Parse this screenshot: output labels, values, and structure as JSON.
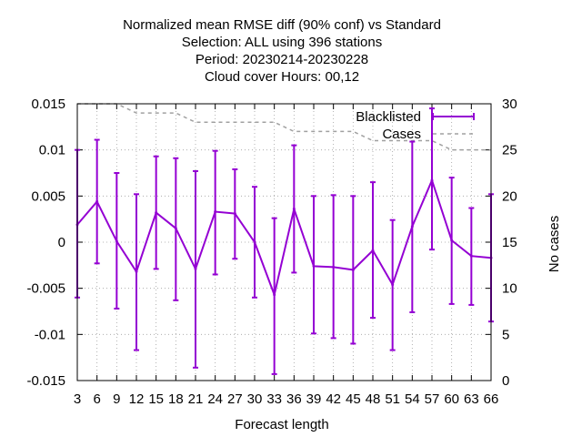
{
  "chart_data": {
    "type": "line",
    "title_lines": [
      "Normalized mean RMSE diff (90% conf) vs Standard",
      "Selection: ALL using   396 stations",
      "Period: 20230214-20230228",
      "Cloud cover   Hours:  00,12"
    ],
    "xlabel": "Forecast length",
    "ylabel_right": "No cases",
    "x": [
      3,
      6,
      9,
      12,
      15,
      18,
      21,
      24,
      27,
      30,
      33,
      36,
      39,
      42,
      45,
      48,
      51,
      54,
      57,
      60,
      63,
      66
    ],
    "xlim": [
      3,
      66
    ],
    "ylim": [
      -0.015,
      0.015
    ],
    "y2lim": [
      0,
      30
    ],
    "y_ticks": [
      "-0.015",
      "-0.01",
      "-0.005",
      "0",
      "0.005",
      "0.01",
      "0.015"
    ],
    "y2_ticks": [
      "0",
      "5",
      "10",
      "15",
      "20",
      "25",
      "30"
    ],
    "grid": true,
    "legend_position": "top-right",
    "series": [
      {
        "name": "Blacklisted",
        "axis": "left",
        "color": "#9400d3",
        "values": [
          0.0019,
          0.0044,
          0.0001,
          -0.0032,
          0.0032,
          0.0015,
          -0.0029,
          0.0033,
          0.0031,
          0.0,
          -0.0057,
          0.0036,
          -0.0026,
          -0.0027,
          -0.003,
          -0.0009,
          -0.0046,
          0.0017,
          0.0067,
          0.0002,
          -0.0015,
          -0.0017
        ],
        "err_low": [
          -0.006,
          -0.0023,
          -0.0072,
          -0.0117,
          -0.0029,
          -0.0063,
          -0.0136,
          -0.0035,
          -0.0018,
          -0.006,
          -0.0143,
          -0.0033,
          -0.0099,
          -0.0104,
          -0.011,
          -0.0082,
          -0.0117,
          -0.0076,
          -0.0008,
          -0.0067,
          -0.0068,
          -0.0086
        ],
        "err_high": [
          0.01,
          0.0111,
          0.0075,
          0.0052,
          0.0093,
          0.0091,
          0.0077,
          0.0099,
          0.0079,
          0.006,
          0.0026,
          0.0105,
          0.005,
          0.0051,
          0.005,
          0.0065,
          0.0024,
          0.0109,
          0.0145,
          0.007,
          0.0037,
          0.0052
        ]
      },
      {
        "name": "Cases",
        "axis": "right",
        "color": "#a0a0a0",
        "values": [
          30,
          30,
          30,
          29,
          29,
          29,
          28,
          28,
          28,
          28,
          28,
          27,
          27,
          27,
          27,
          26,
          26,
          26,
          26,
          25,
          25,
          25
        ]
      }
    ]
  }
}
